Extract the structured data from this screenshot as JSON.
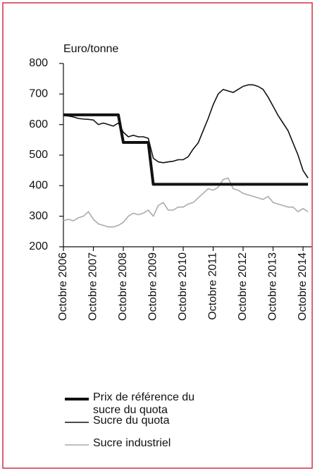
{
  "chart_data": {
    "type": "line",
    "y_axis_label": "Euro/tonne",
    "categories": [
      "Octobre 2006",
      null,
      null,
      null,
      null,
      null,
      "Octobre 2007",
      null,
      null,
      null,
      null,
      null,
      "Octobre 2008",
      null,
      null,
      null,
      null,
      null,
      "Octobre 2009",
      null,
      null,
      null,
      null,
      null,
      "Octobre 2010",
      null,
      null,
      null,
      null,
      null,
      "Octobre 2011",
      null,
      null,
      null,
      null,
      null,
      "Octobre 2012",
      null,
      null,
      null,
      null,
      null,
      "Octobre 2013",
      null,
      null,
      null,
      null,
      null,
      "Octobre 2014",
      null
    ],
    "series": [
      {
        "name": "Prix de référence du sucre du quota",
        "color": "#111111",
        "width": 4,
        "values": [
          631.9,
          631.9,
          631.9,
          631.9,
          631.9,
          631.9,
          631.9,
          631.9,
          631.9,
          631.9,
          631.9,
          631.9,
          541.5,
          541.5,
          541.5,
          541.5,
          541.5,
          541.5,
          404.4,
          404.4,
          404.4,
          404.4,
          404.4,
          404.4,
          404.4,
          404.4,
          404.4,
          404.4,
          404.4,
          404.4,
          404.4,
          404.4,
          404.4,
          404.4,
          404.4,
          404.4,
          404.4,
          404.4,
          404.4,
          404.4,
          404.4,
          404.4,
          404.4,
          404.4,
          404.4,
          404.4,
          404.4,
          404.4,
          404.4,
          404.4
        ]
      },
      {
        "name": "Sucre du quota",
        "color": "#111111",
        "width": 1.6,
        "values": [
          630,
          628,
          625,
          620,
          618,
          617,
          615,
          600,
          605,
          600,
          595,
          605,
          575,
          560,
          565,
          560,
          560,
          555,
          490,
          478,
          475,
          478,
          480,
          485,
          485,
          495,
          520,
          540,
          580,
          620,
          665,
          700,
          715,
          710,
          705,
          715,
          725,
          730,
          730,
          725,
          715,
          690,
          660,
          630,
          605,
          580,
          540,
          500,
          450,
          425
        ]
      },
      {
        "name": "Sucre industriel",
        "color": "#aaaaaa",
        "width": 1.6,
        "values": [
          285,
          290,
          285,
          295,
          300,
          315,
          290,
          275,
          270,
          265,
          265,
          270,
          280,
          300,
          310,
          305,
          310,
          320,
          300,
          335,
          345,
          320,
          320,
          330,
          330,
          340,
          345,
          360,
          375,
          390,
          385,
          395,
          420,
          425,
          390,
          385,
          375,
          370,
          365,
          360,
          355,
          365,
          345,
          340,
          335,
          330,
          330,
          315,
          325,
          315
        ]
      }
    ],
    "ylim": [
      200,
      800
    ],
    "yticks": [
      200,
      300,
      400,
      500,
      600,
      700,
      800
    ]
  }
}
